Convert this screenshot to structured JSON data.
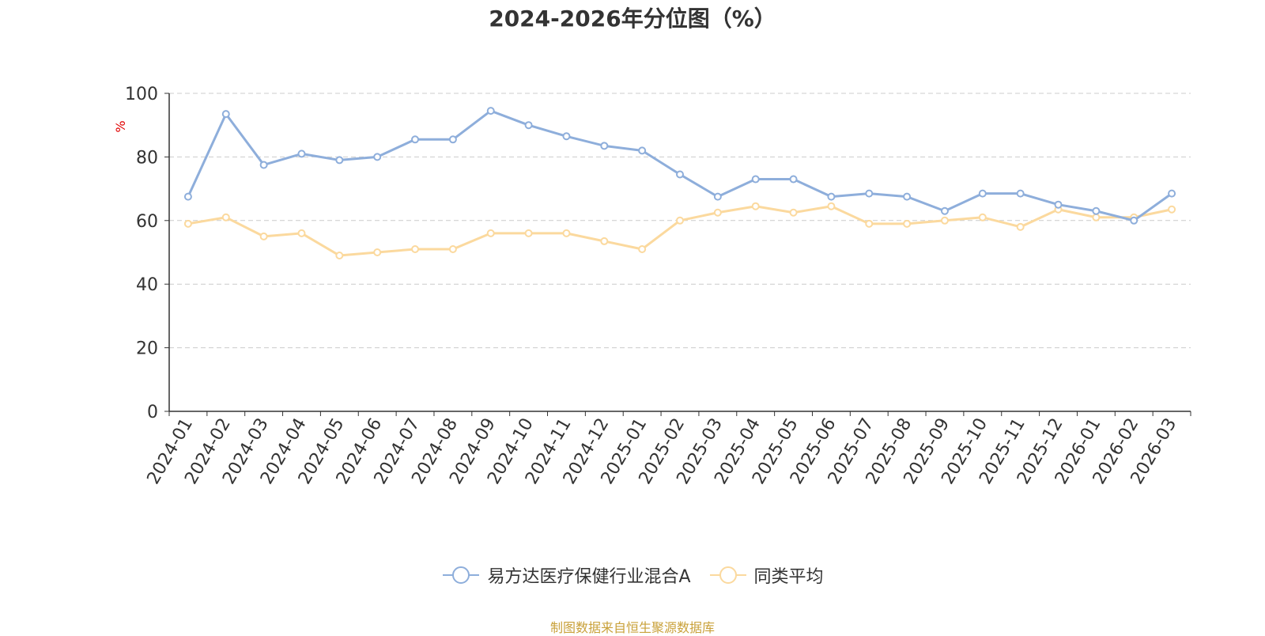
{
  "chart_data": {
    "type": "line",
    "title": "2024-2026年分位图（%）",
    "ylabel": "%",
    "xlabel": "",
    "ylim": [
      0,
      100
    ],
    "yticks": [
      0,
      20,
      40,
      60,
      80,
      100
    ],
    "grid": true,
    "legend_position": "bottom-center",
    "categories": [
      "2024-01",
      "2024-02",
      "2024-03",
      "2024-04",
      "2024-05",
      "2024-06",
      "2024-07",
      "2024-08",
      "2024-09",
      "2024-10",
      "2024-11",
      "2024-12",
      "2025-01",
      "2025-02",
      "2025-03",
      "2025-04",
      "2025-05",
      "2025-06",
      "2025-07",
      "2025-08",
      "2025-09",
      "2025-10",
      "2025-11",
      "2025-12",
      "2026-01",
      "2026-02",
      "2026-03"
    ],
    "series": [
      {
        "name": "易方达医疗保健行业混合A",
        "color": "#8eaedb",
        "values": [
          67.5,
          93.5,
          77.5,
          81,
          79,
          80,
          85.5,
          85.5,
          94.5,
          90,
          86.5,
          83.5,
          82,
          74.5,
          67.5,
          73,
          73,
          67.5,
          68.5,
          67.5,
          63,
          68.5,
          68.5,
          65,
          63,
          60,
          68.5
        ]
      },
      {
        "name": "同类平均",
        "color": "#fbd99e",
        "values": [
          59,
          61,
          55,
          56,
          49,
          50,
          51,
          51,
          56,
          56,
          56,
          53.5,
          51,
          60,
          62.5,
          64.5,
          62.5,
          64.5,
          59,
          59,
          60,
          61,
          58,
          63.5,
          61,
          61,
          63.5
        ]
      }
    ]
  },
  "source_text": "制图数据来自恒生聚源数据库"
}
